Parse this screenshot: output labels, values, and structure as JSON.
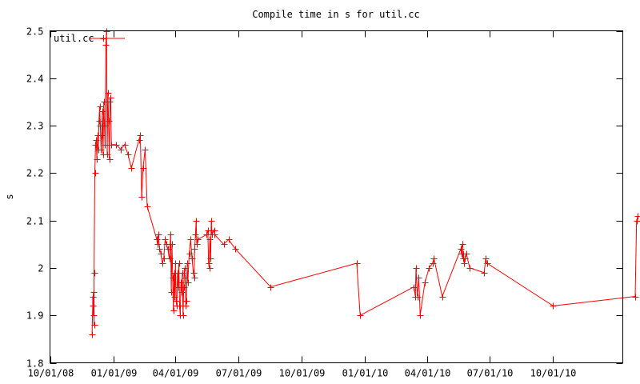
{
  "chart_data": {
    "type": "line",
    "title": "Compile time in s for util.cc",
    "xlabel": "",
    "ylabel": "s",
    "ylim": [
      1.8,
      2.5
    ],
    "yticks": [
      "1.8",
      "1.9",
      "2",
      "2.1",
      "2.2",
      "2.3",
      "2.4",
      "2.5"
    ],
    "xlim": [
      "2008-10-01",
      "2011-01-10"
    ],
    "xticks": [
      {
        "date": "2008-10-01",
        "label": "10/01/08"
      },
      {
        "date": "2009-01-01",
        "label": "01/01/09"
      },
      {
        "date": "2009-04-01",
        "label": "04/01/09"
      },
      {
        "date": "2009-07-01",
        "label": "07/01/09"
      },
      {
        "date": "2009-10-01",
        "label": "10/01/09"
      },
      {
        "date": "2010-01-01",
        "label": "01/01/10"
      },
      {
        "date": "2010-04-01",
        "label": "04/01/10"
      },
      {
        "date": "2010-07-01",
        "label": "07/01/10"
      },
      {
        "date": "2010-10-01",
        "label": "10/01/10"
      }
    ],
    "grid": false,
    "legend": "top-left",
    "color": "#ff0000",
    "series": [
      {
        "name": "util.cc",
        "points": [
          [
            "2008-12-01",
            1.86
          ],
          [
            "2008-12-02",
            1.92
          ],
          [
            "2008-12-02",
            1.94
          ],
          [
            "2008-12-03",
            1.9
          ],
          [
            "2008-12-03",
            1.95
          ],
          [
            "2008-12-04",
            1.88
          ],
          [
            "2008-12-04",
            1.99
          ],
          [
            "2008-12-05",
            2.2
          ],
          [
            "2008-12-06",
            2.26
          ],
          [
            "2008-12-07",
            2.27
          ],
          [
            "2008-12-08",
            2.23
          ],
          [
            "2008-12-09",
            2.28
          ],
          [
            "2008-12-10",
            2.25
          ],
          [
            "2008-12-11",
            2.31
          ],
          [
            "2008-12-12",
            2.34
          ],
          [
            "2008-12-13",
            2.3
          ],
          [
            "2008-12-14",
            2.25
          ],
          [
            "2008-12-15",
            2.28
          ],
          [
            "2008-12-16",
            2.33
          ],
          [
            "2008-12-17",
            2.24
          ],
          [
            "2008-12-18",
            2.35
          ],
          [
            "2008-12-19",
            2.3
          ],
          [
            "2008-12-20",
            2.26
          ],
          [
            "2008-12-21",
            2.47
          ],
          [
            "2008-12-22",
            2.5
          ],
          [
            "2008-12-23",
            2.24
          ],
          [
            "2008-12-24",
            2.37
          ],
          [
            "2008-12-25",
            2.31
          ],
          [
            "2008-12-26",
            2.23
          ],
          [
            "2008-12-27",
            2.35
          ],
          [
            "2008-12-28",
            2.36
          ],
          [
            "2008-12-29",
            2.26
          ],
          [
            "2009-01-05",
            2.26
          ],
          [
            "2009-01-12",
            2.25
          ],
          [
            "2009-01-17",
            2.26
          ],
          [
            "2009-01-22",
            2.24
          ],
          [
            "2009-01-27",
            2.21
          ],
          [
            "2009-02-07",
            2.27
          ],
          [
            "2009-02-09",
            2.28
          ],
          [
            "2009-02-11",
            2.15
          ],
          [
            "2009-02-13",
            2.21
          ],
          [
            "2009-02-16",
            2.25
          ],
          [
            "2009-02-19",
            2.13
          ],
          [
            "2009-03-05",
            2.06
          ],
          [
            "2009-03-06",
            2.05
          ],
          [
            "2009-03-07",
            2.07
          ],
          [
            "2009-03-09",
            2.04
          ],
          [
            "2009-03-11",
            2.03
          ],
          [
            "2009-03-13",
            2.01
          ],
          [
            "2009-03-15",
            2.02
          ],
          [
            "2009-03-17",
            2.06
          ],
          [
            "2009-03-19",
            2.05
          ],
          [
            "2009-03-21",
            2.04
          ],
          [
            "2009-03-23",
            2.02
          ],
          [
            "2009-03-25",
            2.07
          ],
          [
            "2009-03-26",
            1.95
          ],
          [
            "2009-03-27",
            2.05
          ],
          [
            "2009-03-28",
            1.98
          ],
          [
            "2009-03-29",
            1.91
          ],
          [
            "2009-03-30",
            1.99
          ],
          [
            "2009-03-31",
            1.94
          ],
          [
            "2009-04-01",
            2.01
          ],
          [
            "2009-04-02",
            1.93
          ],
          [
            "2009-04-03",
            1.92
          ],
          [
            "2009-04-04",
            1.99
          ],
          [
            "2009-04-05",
            1.96
          ],
          [
            "2009-04-06",
            2.01
          ],
          [
            "2009-04-07",
            1.92
          ],
          [
            "2009-04-08",
            1.9
          ],
          [
            "2009-04-09",
            1.97
          ],
          [
            "2009-04-10",
            1.95
          ],
          [
            "2009-04-11",
            1.99
          ],
          [
            "2009-04-12",
            1.9
          ],
          [
            "2009-04-13",
            1.96
          ],
          [
            "2009-04-14",
            2.0
          ],
          [
            "2009-04-15",
            1.98
          ],
          [
            "2009-04-16",
            1.92
          ],
          [
            "2009-04-17",
            1.93
          ],
          [
            "2009-04-18",
            2.01
          ],
          [
            "2009-04-19",
            1.97
          ],
          [
            "2009-04-21",
            2.03
          ],
          [
            "2009-04-23",
            2.06
          ],
          [
            "2009-04-25",
            2.02
          ],
          [
            "2009-04-27",
            1.99
          ],
          [
            "2009-04-28",
            1.98
          ],
          [
            "2009-04-29",
            2.04
          ],
          [
            "2009-04-30",
            2.07
          ],
          [
            "2009-05-01",
            2.1
          ],
          [
            "2009-05-02",
            2.05
          ],
          [
            "2009-05-03",
            2.06
          ],
          [
            "2009-05-16",
            2.07
          ],
          [
            "2009-05-18",
            2.08
          ],
          [
            "2009-05-19",
            2.01
          ],
          [
            "2009-05-20",
            2.0
          ],
          [
            "2009-05-21",
            2.06
          ],
          [
            "2009-05-22",
            2.02
          ],
          [
            "2009-05-23",
            2.1
          ],
          [
            "2009-05-24",
            2.07
          ],
          [
            "2009-05-27",
            2.08
          ],
          [
            "2009-05-28",
            2.07
          ],
          [
            "2009-06-10",
            2.05
          ],
          [
            "2009-06-17",
            2.06
          ],
          [
            "2009-06-27",
            2.04
          ],
          [
            "2009-08-17",
            1.96
          ],
          [
            "2009-12-20",
            2.01
          ],
          [
            "2009-12-25",
            1.9
          ],
          [
            "2010-03-13",
            1.96
          ],
          [
            "2010-03-15",
            1.94
          ],
          [
            "2010-03-16",
            2.0
          ],
          [
            "2010-03-18",
            1.94
          ],
          [
            "2010-03-20",
            1.98
          ],
          [
            "2010-03-22",
            1.9
          ],
          [
            "2010-03-29",
            1.97
          ],
          [
            "2010-04-04",
            2.0
          ],
          [
            "2010-04-09",
            2.01
          ],
          [
            "2010-04-11",
            2.02
          ],
          [
            "2010-04-23",
            1.94
          ],
          [
            "2010-05-20",
            2.04
          ],
          [
            "2010-05-21",
            2.03
          ],
          [
            "2010-05-22",
            2.05
          ],
          [
            "2010-05-23",
            2.02
          ],
          [
            "2010-05-24",
            2.03
          ],
          [
            "2010-05-25",
            2.01
          ],
          [
            "2010-05-26",
            2.02
          ],
          [
            "2010-05-28",
            2.03
          ],
          [
            "2010-06-02",
            2.0
          ],
          [
            "2010-06-23",
            1.99
          ],
          [
            "2010-06-25",
            2.02
          ],
          [
            "2010-06-27",
            2.01
          ],
          [
            "2010-10-01",
            1.92
          ],
          [
            "2011-01-28",
            1.94
          ],
          [
            "2011-01-30",
            2.1
          ],
          [
            "2011-02-01",
            2.11
          ]
        ]
      }
    ]
  }
}
